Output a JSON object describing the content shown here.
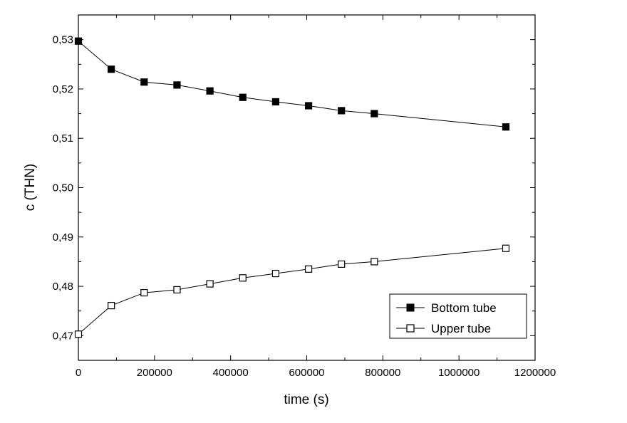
{
  "chart_data": {
    "type": "line",
    "title": "",
    "xlabel": "time (s)",
    "ylabel": "c (THN)",
    "xlim": [
      0,
      1200000
    ],
    "ylim": [
      0.465,
      0.535
    ],
    "x_ticks": [
      0,
      200000,
      400000,
      600000,
      800000,
      1000000,
      1200000
    ],
    "x_tick_labels": [
      "0",
      "200000",
      "400000",
      "600000",
      "800000",
      "1000000",
      "1200000"
    ],
    "y_ticks": [
      0.47,
      0.48,
      0.49,
      0.5,
      0.51,
      0.52,
      0.53
    ],
    "y_tick_labels": [
      "0,47",
      "0,48",
      "0,49",
      "0,50",
      "0,51",
      "0,52",
      "0,53"
    ],
    "grid": false,
    "legend_position": "bottom-right",
    "series": [
      {
        "name": "Bottom tube",
        "marker": "filled-square",
        "color": "#000000",
        "x": [
          0,
          86400,
          172800,
          259200,
          345600,
          432000,
          518400,
          604800,
          691200,
          777600,
          1123200
        ],
        "y": [
          0.5297,
          0.524,
          0.5214,
          0.5208,
          0.5196,
          0.5183,
          0.5174,
          0.5166,
          0.5156,
          0.515,
          0.5123
        ]
      },
      {
        "name": "Upper tube",
        "marker": "open-square",
        "color": "#000000",
        "x": [
          0,
          86400,
          172800,
          259200,
          345600,
          432000,
          518400,
          604800,
          691200,
          777600,
          1123200
        ],
        "y": [
          0.4703,
          0.4761,
          0.4787,
          0.4793,
          0.4805,
          0.4817,
          0.4826,
          0.4835,
          0.4845,
          0.485,
          0.4877
        ]
      }
    ]
  }
}
